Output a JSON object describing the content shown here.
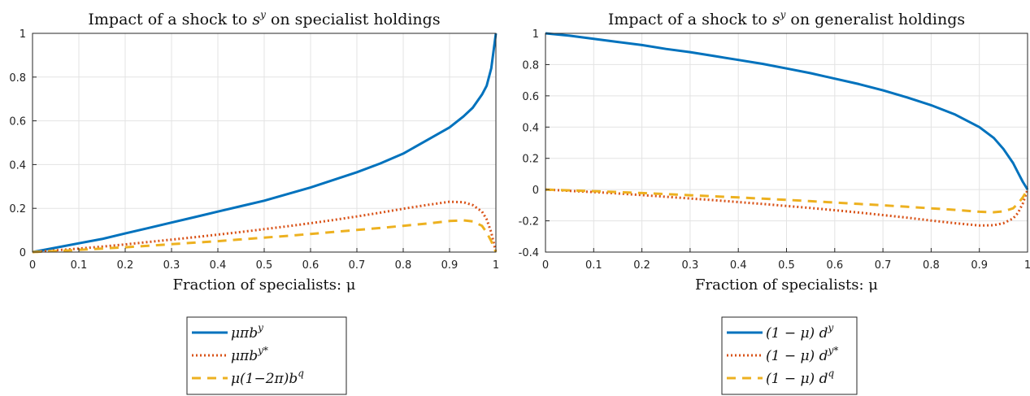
{
  "chart_data": [
    {
      "type": "line",
      "title": {
        "text": "Impact of a shock to ",
        "math_base": "s",
        "math_sup": "y",
        "after": " on specialist holdings"
      },
      "xlabel": "Fraction of specialists: μ",
      "xlim": [
        0,
        1
      ],
      "ylim": [
        0,
        1
      ],
      "xticks": [
        "0",
        "0.1",
        "0.2",
        "0.3",
        "0.4",
        "0.5",
        "0.6",
        "0.7",
        "0.8",
        "0.9",
        "1"
      ],
      "yticks": [
        "0",
        "0.2",
        "0.4",
        "0.6",
        "0.8",
        "1"
      ],
      "grid": true,
      "legend_position": "below",
      "x": [
        0,
        0.05,
        0.1,
        0.15,
        0.2,
        0.25,
        0.3,
        0.35,
        0.4,
        0.45,
        0.5,
        0.55,
        0.6,
        0.65,
        0.7,
        0.75,
        0.8,
        0.85,
        0.9,
        0.93,
        0.95,
        0.97,
        0.98,
        0.99,
        1.0
      ],
      "series": [
        {
          "name": "μπb^y",
          "label_base": "μπb",
          "label_sup": "y",
          "color": "#0072BD",
          "style": "solid",
          "values": [
            0,
            0.02,
            0.04,
            0.06,
            0.085,
            0.11,
            0.135,
            0.16,
            0.185,
            0.21,
            0.235,
            0.265,
            0.295,
            0.33,
            0.365,
            0.405,
            0.45,
            0.51,
            0.57,
            0.62,
            0.66,
            0.72,
            0.76,
            0.84,
            1.0
          ]
        },
        {
          "name": "μπb^y*",
          "label_base": "μπb",
          "label_sup": "y*",
          "color": "#D95319",
          "style": "dotted",
          "values": [
            0,
            0.008,
            0.016,
            0.025,
            0.035,
            0.046,
            0.057,
            0.068,
            0.08,
            0.092,
            0.105,
            0.118,
            0.132,
            0.147,
            0.163,
            0.18,
            0.198,
            0.215,
            0.23,
            0.228,
            0.215,
            0.185,
            0.15,
            0.09,
            0
          ]
        },
        {
          "name": "μ(1−2π)b^q",
          "label_base": "μ(1−2π)b",
          "label_sup": "q",
          "color": "#EDB120",
          "style": "dashed",
          "values": [
            0,
            0.005,
            0.01,
            0.016,
            0.022,
            0.029,
            0.036,
            0.043,
            0.05,
            0.058,
            0.066,
            0.074,
            0.083,
            0.092,
            0.101,
            0.11,
            0.12,
            0.13,
            0.142,
            0.145,
            0.14,
            0.12,
            0.09,
            0.05,
            0
          ]
        }
      ]
    },
    {
      "type": "line",
      "title": {
        "text": "Impact of a shock to ",
        "math_base": "s",
        "math_sup": "y",
        "after": " on generalist holdings"
      },
      "xlabel": "Fraction of specialists: μ",
      "xlim": [
        0,
        1
      ],
      "ylim": [
        -0.4,
        1
      ],
      "xticks": [
        "0",
        "0.1",
        "0.2",
        "0.3",
        "0.4",
        "0.5",
        "0.6",
        "0.7",
        "0.8",
        "0.9",
        "1"
      ],
      "yticks": [
        "-0.4",
        "-0.2",
        "0",
        "0.2",
        "0.4",
        "0.6",
        "0.8",
        "1"
      ],
      "grid": true,
      "legend_position": "below",
      "x": [
        0,
        0.05,
        0.1,
        0.15,
        0.2,
        0.25,
        0.3,
        0.35,
        0.4,
        0.45,
        0.5,
        0.55,
        0.6,
        0.65,
        0.7,
        0.75,
        0.8,
        0.85,
        0.9,
        0.93,
        0.95,
        0.97,
        0.98,
        0.99,
        1.0
      ],
      "series": [
        {
          "name": "(1−μ)d^y",
          "label_base": "(1 − μ) d",
          "label_sup": "y",
          "color": "#0072BD",
          "style": "solid",
          "values": [
            1.0,
            0.985,
            0.965,
            0.945,
            0.925,
            0.9,
            0.88,
            0.855,
            0.83,
            0.805,
            0.775,
            0.745,
            0.71,
            0.675,
            0.635,
            0.59,
            0.54,
            0.48,
            0.4,
            0.33,
            0.26,
            0.17,
            0.11,
            0.05,
            0
          ]
        },
        {
          "name": "(1−μ)d^y*",
          "label_base": "(1 − μ) d",
          "label_sup": "y*",
          "color": "#D95319",
          "style": "dotted",
          "values": [
            0,
            -0.008,
            -0.016,
            -0.025,
            -0.035,
            -0.046,
            -0.057,
            -0.068,
            -0.08,
            -0.092,
            -0.105,
            -0.118,
            -0.132,
            -0.147,
            -0.163,
            -0.18,
            -0.198,
            -0.215,
            -0.23,
            -0.228,
            -0.215,
            -0.185,
            -0.15,
            -0.09,
            0
          ]
        },
        {
          "name": "(1−μ)d^q",
          "label_base": "(1 − μ) d",
          "label_sup": "q",
          "color": "#EDB120",
          "style": "dashed",
          "values": [
            0,
            -0.005,
            -0.01,
            -0.016,
            -0.022,
            -0.029,
            -0.036,
            -0.043,
            -0.05,
            -0.058,
            -0.066,
            -0.074,
            -0.083,
            -0.092,
            -0.101,
            -0.11,
            -0.12,
            -0.13,
            -0.142,
            -0.145,
            -0.14,
            -0.12,
            -0.09,
            -0.05,
            0
          ]
        }
      ]
    }
  ]
}
